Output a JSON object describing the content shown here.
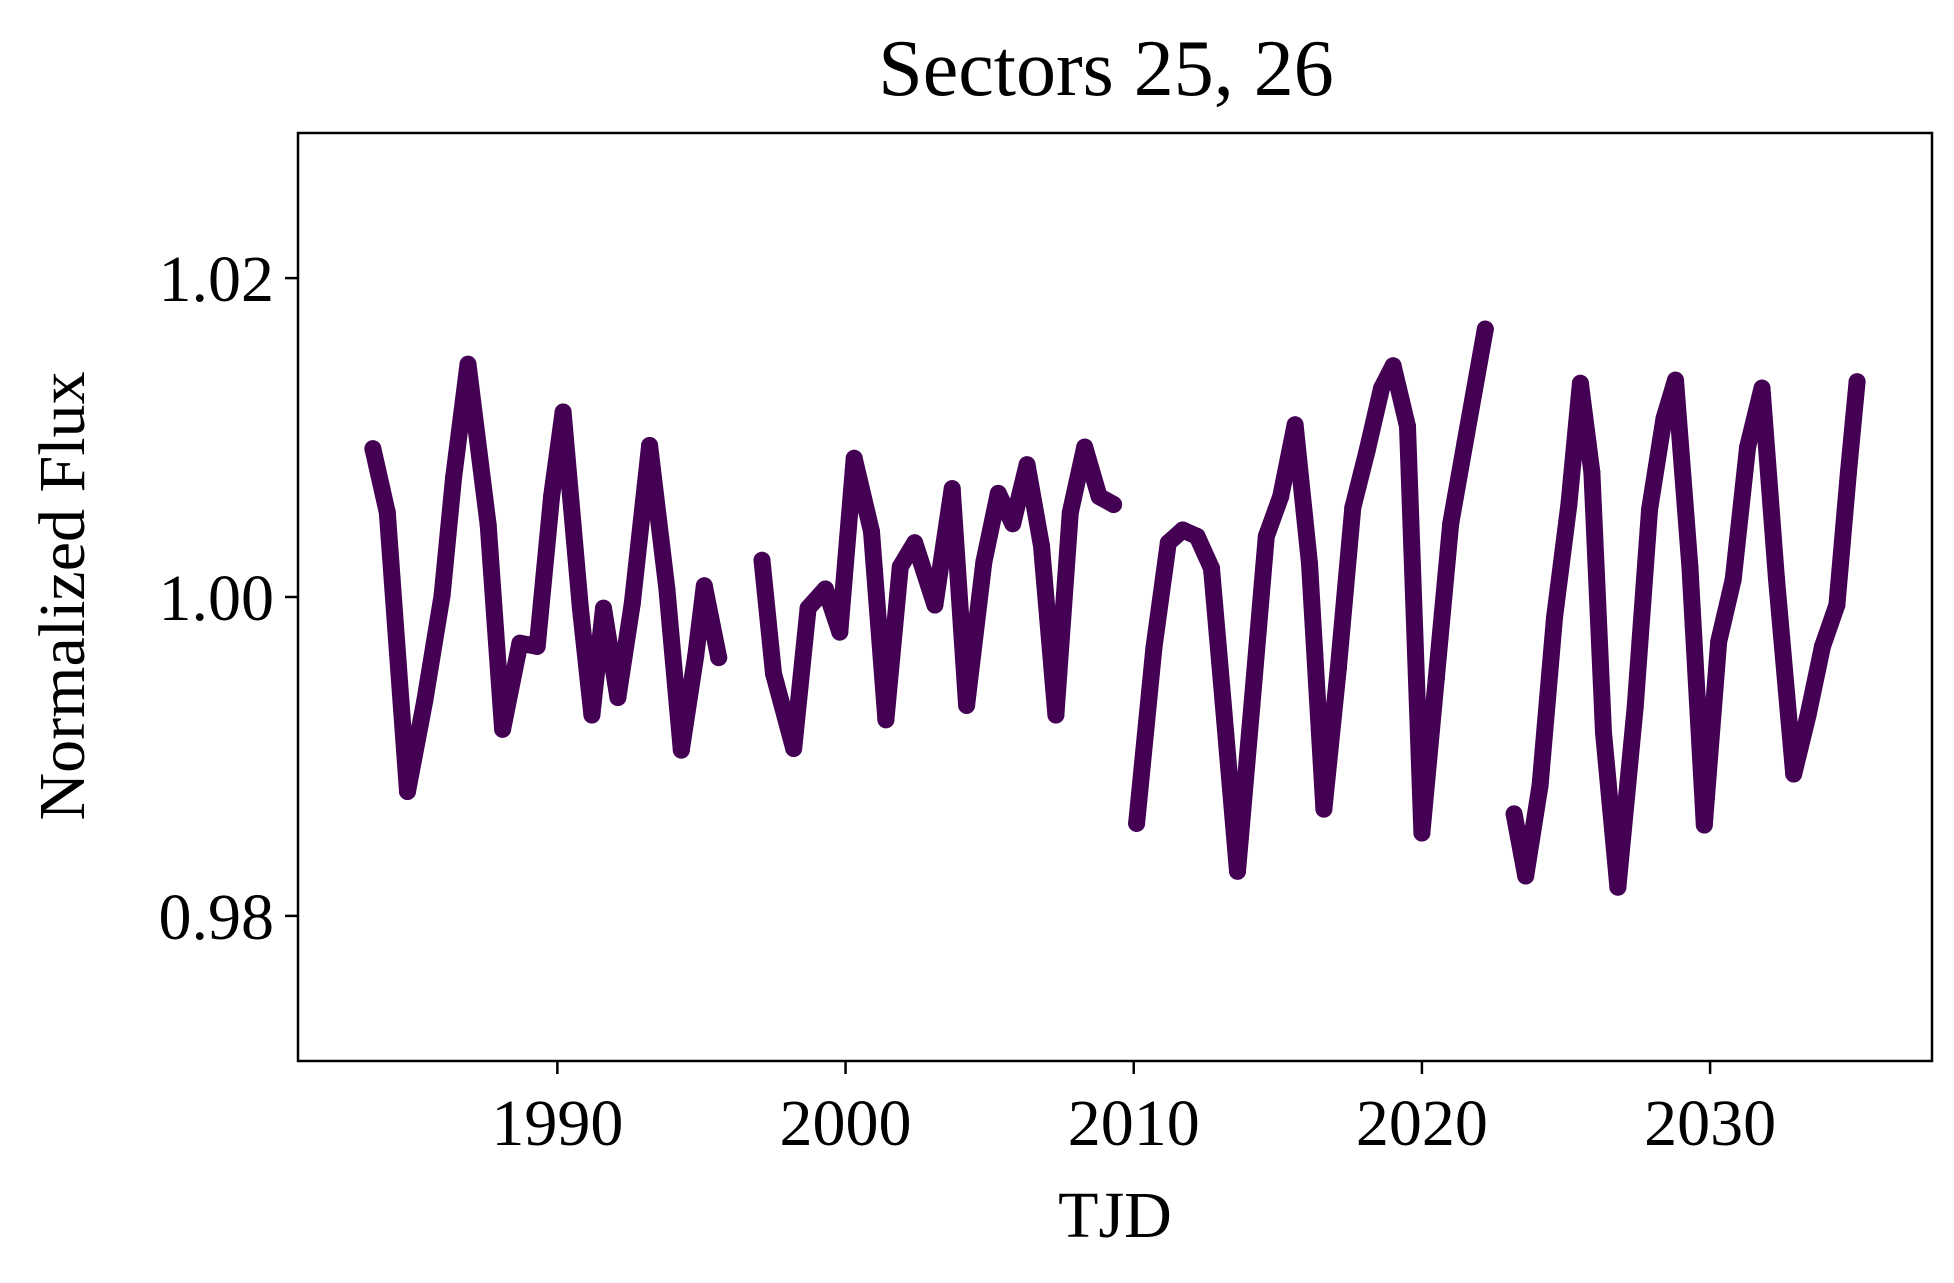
{
  "chart_data": {
    "type": "scatter",
    "title": "Sectors 25, 26",
    "xlabel": "TJD",
    "ylabel": "Normalized Flux",
    "xlim": [
      1981.0,
      2037.7
    ],
    "ylim": [
      0.9709,
      1.0291
    ],
    "xticks": [
      1990,
      2000,
      2010,
      2020,
      2030
    ],
    "xtick_labels": [
      "1990",
      "2000",
      "2010",
      "2020",
      "2030"
    ],
    "yticks": [
      0.98,
      1.0,
      1.02
    ],
    "ytick_labels": [
      "0.98",
      "1.00",
      "1.02"
    ],
    "grid": false,
    "legend": "none",
    "colormap": [
      "#440154",
      "#3b528b",
      "#21918c",
      "#5ec962",
      "#fde725"
    ],
    "point_color": "#440154",
    "series": [
      {
        "x": [
          1983.6,
          1984.1,
          1984.8,
          1985.4,
          1986.0,
          1986.4,
          1986.9,
          1987.6,
          1988.1,
          1988.7,
          1989.3,
          1989.8,
          1990.2,
          1990.8,
          1991.2,
          1991.6,
          1992.1,
          1992.6,
          1993.2,
          1993.8,
          1994.3,
          1994.8,
          1995.1,
          1995.6
        ],
        "y": [
          1.0093,
          1.0053,
          0.9878,
          0.9935,
          1.0001,
          1.0075,
          1.0146,
          1.0045,
          0.9917,
          0.9971,
          0.9969,
          1.0063,
          1.0116,
          0.9993,
          0.9926,
          0.9993,
          0.9937,
          0.9996,
          1.0095,
          1.0005,
          0.9904,
          0.9963,
          1.0007,
          0.9962
        ]
      },
      {
        "x": [
          1997.1,
          1997.5,
          1998.2,
          1998.7,
          1999.3,
          1999.8,
          2000.3,
          2000.9,
          2001.4,
          2001.9,
          2002.4,
          2003.1,
          2003.7,
          2004.2,
          2004.8,
          2005.3,
          2005.8,
          2006.3,
          2006.8,
          2007.3,
          2007.8,
          2008.3,
          2008.8,
          2009.3
        ],
        "y": [
          1.0023,
          0.9952,
          0.9905,
          0.9993,
          1.0005,
          0.9978,
          1.0087,
          1.0041,
          0.9923,
          1.0019,
          1.0034,
          0.9995,
          1.0068,
          0.9932,
          1.0022,
          1.0065,
          1.0046,
          1.0083,
          1.0032,
          0.9926,
          1.0053,
          1.0094,
          1.0063,
          1.0058
        ]
      },
      {
        "x": [
          2010.1,
          2010.7,
          2011.2,
          2011.7,
          2012.2,
          2012.7,
          2013.1,
          2013.6,
          2014.1,
          2014.6,
          2015.1,
          2015.6,
          2016.1,
          2016.6,
          2017.1,
          2017.6,
          2018.1,
          2018.6,
          2019.0,
          2019.5,
          2020.0,
          2020.5,
          2021.0,
          2021.5,
          2022.2
        ],
        "y": [
          0.9858,
          0.9968,
          1.0034,
          1.0042,
          1.0038,
          1.0018,
          0.9934,
          0.9828,
          0.9932,
          1.0038,
          1.0063,
          1.0108,
          1.0021,
          0.9867,
          0.9955,
          1.0056,
          1.0092,
          1.0131,
          1.0145,
          1.0107,
          0.9852,
          0.9949,
          1.0046,
          1.0097,
          1.0168
        ]
      },
      {
        "x": [
          2023.2,
          2023.6,
          2024.1,
          2024.6,
          2025.1,
          2025.5,
          2025.9,
          2026.3,
          2026.8,
          2027.4,
          2027.9,
          2028.4,
          2028.8,
          2029.3,
          2029.8,
          2030.3,
          2030.8,
          2031.3,
          2031.8,
          2032.3,
          2032.9,
          2033.4,
          2033.9,
          2034.4,
          2034.8,
          2035.1
        ],
        "y": [
          0.9864,
          0.9825,
          0.9882,
          0.9987,
          1.0058,
          1.0134,
          1.0078,
          0.9915,
          0.9818,
          0.9931,
          1.0055,
          1.0112,
          1.0136,
          1.0019,
          0.9857,
          0.9972,
          1.0011,
          1.0094,
          1.0131,
          1.0012,
          0.9889,
          0.9926,
          0.9969,
          0.9995,
          1.0078,
          1.0135
        ]
      }
    ]
  }
}
